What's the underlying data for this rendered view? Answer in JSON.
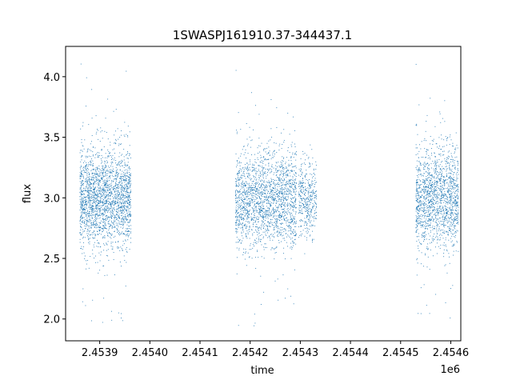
{
  "chart_data": {
    "type": "scatter",
    "title": "1SWASPJ161910.37-344437.1",
    "xlabel": "time",
    "ylabel": "flux",
    "x_offset_label": "1e6",
    "xlim": [
      2453832,
      2454620
    ],
    "ylim": [
      1.82,
      4.25
    ],
    "grid": false,
    "legend": "none",
    "marker_color": "#1f77b4",
    "x_ticks": [
      2453900,
      2454000,
      2454100,
      2454200,
      2454300,
      2454400,
      2454500,
      2454600
    ],
    "x_tick_labels": [
      "2.4539",
      "2.4540",
      "2.4541",
      "2.4542",
      "2.4543",
      "2.4544",
      "2.4545",
      "2.4546"
    ],
    "y_ticks": [
      2.0,
      2.5,
      3.0,
      3.5,
      4.0
    ],
    "y_tick_labels": [
      "2.0",
      "2.5",
      "3.0",
      "3.5",
      "4.0"
    ],
    "observation_segments": [
      {
        "x_start": 2453860,
        "x_end": 2453962,
        "flux_center": 3.0,
        "flux_spread": 0.2,
        "flux_min": 1.95,
        "flux_max": 4.15,
        "points": 2200
      },
      {
        "x_start": 2454170,
        "x_end": 2454292,
        "flux_center": 2.98,
        "flux_spread": 0.2,
        "flux_min": 1.92,
        "flux_max": 4.1,
        "points": 2000
      },
      {
        "x_start": 2454296,
        "x_end": 2454332,
        "flux_center": 3.0,
        "flux_spread": 0.15,
        "flux_min": 2.5,
        "flux_max": 3.55,
        "points": 400
      },
      {
        "x_start": 2454530,
        "x_end": 2454615,
        "flux_center": 3.0,
        "flux_spread": 0.21,
        "flux_min": 2.0,
        "flux_max": 4.15,
        "points": 1600
      }
    ]
  }
}
